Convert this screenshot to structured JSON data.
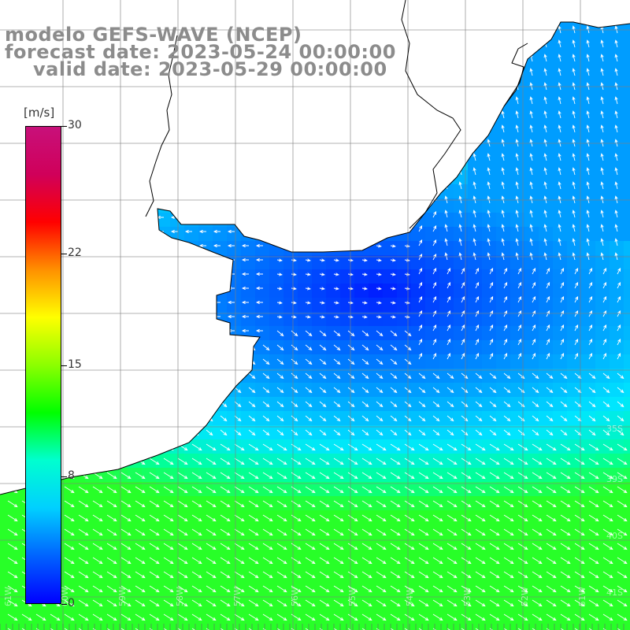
{
  "title": {
    "line1": "modelo GEFS-WAVE (NCEP)",
    "line2": "forecast date: 2023-05-24 00:00:00",
    "line3": "valid date: 2023-05-29 00:00:00"
  },
  "colorbar": {
    "unit": "[m/s]",
    "min": 0,
    "max": 30,
    "ticks": [
      "0",
      "8",
      "15",
      "22",
      "30"
    ],
    "gradient": [
      "#0000ff",
      "#0064ff",
      "#00d0ff",
      "#00ffcf",
      "#00ff00",
      "#8cff00",
      "#ffff00",
      "#ff9000",
      "#ff0000",
      "#d0005a",
      "#c8107a"
    ]
  },
  "map": {
    "lat_labels": [
      "35S",
      "39S",
      "40S",
      "41S"
    ],
    "lon_labels": [
      "61W",
      "60W",
      "59W",
      "58W",
      "57W",
      "56W",
      "55W",
      "54W",
      "53W",
      "52W",
      "51W"
    ],
    "field": "wind speed",
    "colors": {
      "land": "#ffffff",
      "grid": "#808080",
      "arrow": "#ffffff"
    }
  }
}
